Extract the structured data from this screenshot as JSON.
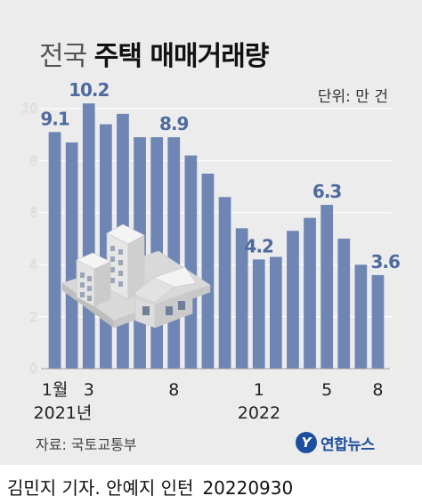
{
  "title_light": "전국",
  "title_bold": "주택 매매거래량",
  "unit": "단위: 만 건",
  "source": "자료: 국토교통부",
  "logo_text": "연합뉴스",
  "logo_mark": "Y",
  "byline": "김민지 기자. 안예지 인턴",
  "byline_date": "20220930",
  "chart_data": {
    "type": "bar",
    "categories": [
      "2021-01",
      "2021-02",
      "2021-03",
      "2021-04",
      "2021-05",
      "2021-06",
      "2021-07",
      "2021-08",
      "2021-09",
      "2021-10",
      "2021-11",
      "2021-12",
      "2022-01",
      "2022-02",
      "2022-03",
      "2022-04",
      "2022-05",
      "2022-06",
      "2022-07",
      "2022-08"
    ],
    "values": [
      9.1,
      8.7,
      10.2,
      9.4,
      9.8,
      8.9,
      8.9,
      8.9,
      8.2,
      7.5,
      6.6,
      5.4,
      4.2,
      4.3,
      5.3,
      5.8,
      6.3,
      5.0,
      4.0,
      3.6
    ],
    "ylim": [
      0,
      10
    ],
    "yticks": [
      0,
      2,
      4,
      6,
      8,
      10
    ],
    "x_tick_labels": [
      {
        "index": 0,
        "label": "1월"
      },
      {
        "index": 2,
        "label": "3"
      },
      {
        "index": 7,
        "label": "8"
      },
      {
        "index": 12,
        "label": "1"
      },
      {
        "index": 16,
        "label": "5"
      },
      {
        "index": 19,
        "label": "8"
      }
    ],
    "year_labels": [
      {
        "index": 0,
        "label": "2021년"
      },
      {
        "index": 12,
        "label": "2022"
      }
    ],
    "data_labels": [
      {
        "index": 0,
        "label": "9.1"
      },
      {
        "index": 2,
        "label": "10.2"
      },
      {
        "index": 7,
        "label": "8.9"
      },
      {
        "index": 12,
        "label": "4.2"
      },
      {
        "index": 16,
        "label": "6.3"
      },
      {
        "index": 19,
        "label": "3.6"
      }
    ],
    "grid": true,
    "bar_color": "#6f86b5",
    "label_color": "#4f6a9f"
  }
}
